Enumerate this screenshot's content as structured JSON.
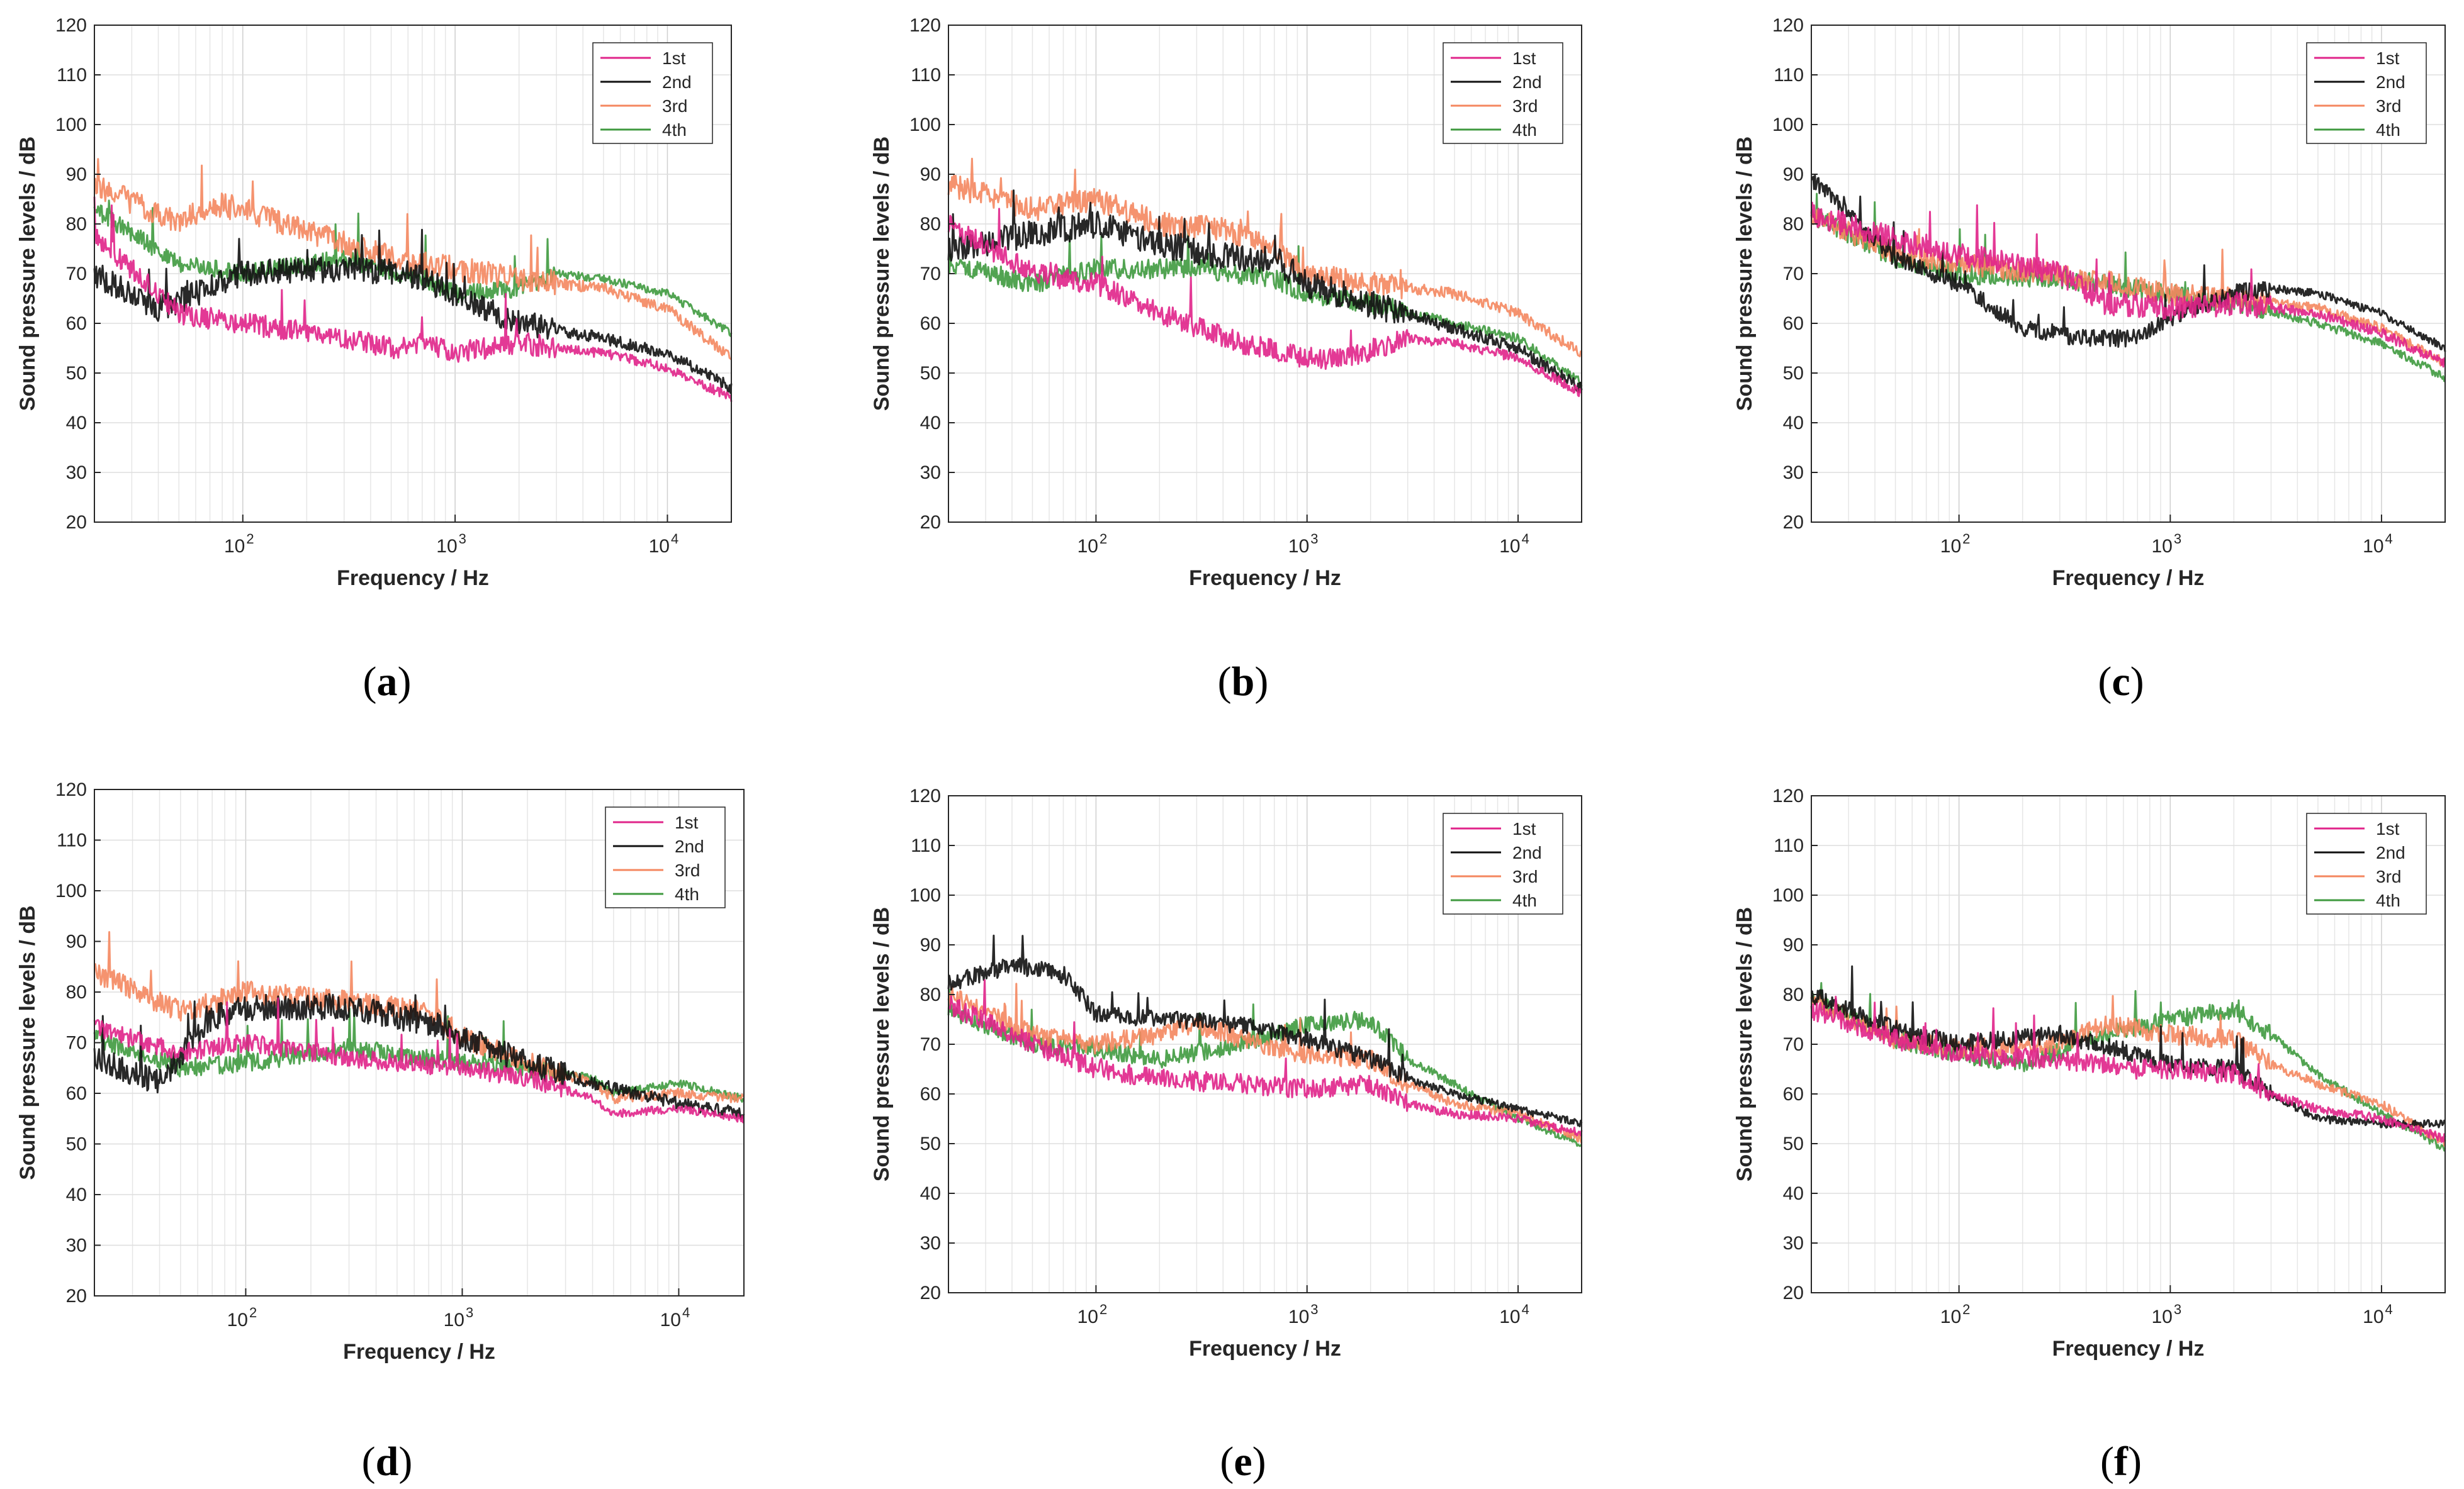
{
  "figure": {
    "captions": [
      "(a)",
      "(b)",
      "(c)",
      "(d)",
      "(e)",
      "(f)"
    ]
  },
  "series_colors": {
    "1st": "#e0248a",
    "2nd": "#111111",
    "3rd": "#f4875f",
    "4th": "#3f9a3f"
  },
  "chart_data": [
    {
      "panel": "(a)",
      "type": "line",
      "xscale": "log",
      "xlabel": "Frequency / Hz",
      "ylabel": "Sound pressure levels / dB",
      "xlim": [
        20,
        20000
      ],
      "ylim": [
        20,
        120
      ],
      "yticks": [
        20,
        30,
        40,
        50,
        60,
        70,
        80,
        90,
        100,
        110,
        120
      ],
      "xticks": [
        {
          "value": 100,
          "label": "10",
          "exp": "2"
        },
        {
          "value": 1000,
          "label": "10",
          "exp": "3"
        },
        {
          "value": 10000,
          "label": "10",
          "exp": "4"
        }
      ],
      "legend": [
        "1st",
        "2nd",
        "3rd",
        "4th"
      ],
      "legend_position": "top-right",
      "series": [
        {
          "name": "1st",
          "x": [
            20,
            50,
            100,
            300,
            500,
            700,
            1000,
            2000,
            5000,
            10000,
            20000
          ],
          "values": [
            78,
            62,
            60,
            57,
            55,
            56,
            54,
            56,
            54,
            51,
            45
          ],
          "noise": 2.2
        },
        {
          "name": "2nd",
          "x": [
            20,
            40,
            70,
            100,
            300,
            600,
            1000,
            2000,
            5000,
            10000,
            20000
          ],
          "values": [
            70,
            63,
            67,
            70,
            71,
            70,
            66,
            60,
            57,
            54,
            47
          ],
          "noise": 2.6
        },
        {
          "name": "3rd",
          "x": [
            20,
            50,
            70,
            100,
            300,
            700,
            1000,
            2000,
            5000,
            10000,
            20000
          ],
          "values": [
            88,
            80,
            84,
            83,
            76,
            72,
            71,
            69,
            67,
            63,
            53
          ],
          "noise": 2.5
        },
        {
          "name": "4th",
          "x": [
            20,
            50,
            100,
            300,
            700,
            1000,
            2000,
            3000,
            5000,
            10000,
            20000
          ],
          "values": [
            83,
            72,
            70,
            73,
            69,
            66,
            67,
            70,
            69,
            66,
            58
          ],
          "noise": 1.8
        }
      ]
    },
    {
      "panel": "(b)",
      "type": "line",
      "xscale": "log",
      "xlabel": "Frequency / Hz",
      "ylabel": "Sound pressure levels / dB",
      "xlim": [
        20,
        20000
      ],
      "ylim": [
        20,
        120
      ],
      "yticks": [
        20,
        30,
        40,
        50,
        60,
        70,
        80,
        90,
        100,
        110,
        120
      ],
      "xticks": [
        {
          "value": 100,
          "label": "10",
          "exp": "2"
        },
        {
          "value": 1000,
          "label": "10",
          "exp": "3"
        },
        {
          "value": 10000,
          "label": "10",
          "exp": "4"
        }
      ],
      "legend": [
        "1st",
        "2nd",
        "3rd",
        "4th"
      ],
      "legend_position": "top-right",
      "series": [
        {
          "name": "1st",
          "x": [
            20,
            50,
            100,
            200,
            500,
            1000,
            1500,
            3000,
            5000,
            10000,
            20000
          ],
          "values": [
            80,
            70,
            68,
            62,
            56,
            53,
            53,
            57,
            56,
            53,
            46
          ],
          "noise": 2.2
        },
        {
          "name": "2nd",
          "x": [
            20,
            50,
            100,
            200,
            500,
            700,
            1000,
            2000,
            5000,
            10000,
            20000
          ],
          "values": [
            75,
            78,
            80,
            76,
            73,
            73,
            68,
            64,
            59,
            55,
            47
          ],
          "noise": 2.8
        },
        {
          "name": "3rd",
          "x": [
            20,
            50,
            100,
            200,
            400,
            700,
            1000,
            2000,
            5000,
            10000,
            20000
          ],
          "values": [
            88,
            83,
            85,
            80,
            79,
            75,
            70,
            68,
            66,
            62,
            54
          ],
          "noise": 2.4
        },
        {
          "name": "4th",
          "x": [
            20,
            50,
            100,
            300,
            700,
            1000,
            2000,
            5000,
            10000,
            20000
          ],
          "values": [
            72,
            68,
            71,
            71,
            69,
            66,
            64,
            60,
            57,
            48
          ],
          "noise": 2.0
        }
      ]
    },
    {
      "panel": "(c)",
      "type": "line",
      "xscale": "log",
      "xlabel": "Frequency / Hz",
      "ylabel": "Sound pressure levels / dB",
      "xlim": [
        20,
        20000
      ],
      "ylim": [
        20,
        120
      ],
      "yticks": [
        20,
        30,
        40,
        50,
        60,
        70,
        80,
        90,
        100,
        110,
        120
      ],
      "xticks": [
        {
          "value": 100,
          "label": "10",
          "exp": "2"
        },
        {
          "value": 1000,
          "label": "10",
          "exp": "3"
        },
        {
          "value": 10000,
          "label": "10",
          "exp": "4"
        }
      ],
      "legend": [
        "1st",
        "2nd",
        "3rd",
        "4th"
      ],
      "legend_position": "top-right",
      "series": [
        {
          "name": "1st",
          "x": [
            20,
            50,
            100,
            300,
            500,
            1000,
            2000,
            5000,
            10000,
            20000
          ],
          "values": [
            82,
            77,
            74,
            70,
            64,
            63,
            64,
            62,
            58,
            52
          ],
          "noise": 2.4
        },
        {
          "name": "2nd",
          "x": [
            20,
            50,
            100,
            200,
            400,
            700,
            1000,
            2000,
            3000,
            5000,
            10000,
            20000
          ],
          "values": [
            89,
            73,
            68,
            59,
            57,
            57,
            61,
            66,
            67,
            66,
            62,
            55
          ],
          "noise": 1.8
        },
        {
          "name": "3rd",
          "x": [
            20,
            50,
            100,
            300,
            1000,
            2000,
            5000,
            10000,
            20000
          ],
          "values": [
            82,
            74,
            72,
            70,
            66,
            65,
            63,
            59,
            52
          ],
          "noise": 2.3
        },
        {
          "name": "4th",
          "x": [
            20,
            50,
            100,
            300,
            1000,
            2000,
            5000,
            10000,
            20000
          ],
          "values": [
            82,
            73,
            70,
            69,
            66,
            64,
            60,
            56,
            49
          ],
          "noise": 2.0
        }
      ]
    },
    {
      "panel": "(d)",
      "type": "line",
      "xscale": "log",
      "xlabel": "Frequency / Hz",
      "ylabel": "Sound pressure levels / dB",
      "xlim": [
        20,
        20000
      ],
      "ylim": [
        20,
        120
      ],
      "yticks": [
        20,
        30,
        40,
        50,
        60,
        70,
        80,
        90,
        100,
        110,
        120
      ],
      "xticks": [
        {
          "value": 100,
          "label": "10",
          "exp": "2"
        },
        {
          "value": 1000,
          "label": "10",
          "exp": "3"
        },
        {
          "value": 10000,
          "label": "10",
          "exp": "4"
        }
      ],
      "legend": [
        "1st",
        "2nd",
        "3rd",
        "4th"
      ],
      "legend_position": "top-right",
      "series": [
        {
          "name": "1st",
          "x": [
            20,
            50,
            100,
            300,
            1000,
            2000,
            4000,
            5000,
            10000,
            20000
          ],
          "values": [
            73,
            68,
            70,
            67,
            65,
            63,
            59,
            56,
            57,
            55
          ],
          "noise": 1.8
        },
        {
          "name": "2nd",
          "x": [
            20,
            40,
            70,
            100,
            300,
            700,
            1000,
            2000,
            4000,
            10000,
            20000
          ],
          "values": [
            67,
            62,
            75,
            77,
            77,
            74,
            71,
            66,
            62,
            58,
            56
          ],
          "noise": 2.6
        },
        {
          "name": "3rd",
          "x": [
            20,
            50,
            100,
            300,
            700,
            1000,
            2000,
            4000,
            5000,
            10000,
            20000
          ],
          "values": [
            84,
            76,
            80,
            78,
            76,
            71,
            66,
            62,
            59,
            60,
            59
          ],
          "noise": 2.2
        },
        {
          "name": "4th",
          "x": [
            20,
            50,
            100,
            300,
            1000,
            2000,
            4000,
            5000,
            10000,
            20000
          ],
          "values": [
            71,
            65,
            66,
            69,
            66,
            65,
            63,
            60,
            62,
            59
          ],
          "noise": 1.8
        }
      ]
    },
    {
      "panel": "(e)",
      "type": "line",
      "xscale": "log",
      "xlabel": "Frequency / Hz",
      "ylabel": "Sound pressure levels / dB",
      "xlim": [
        20,
        20000
      ],
      "ylim": [
        20,
        120
      ],
      "yticks": [
        20,
        30,
        40,
        50,
        60,
        70,
        80,
        90,
        100,
        110,
        120
      ],
      "xticks": [
        {
          "value": 100,
          "label": "10",
          "exp": "2"
        },
        {
          "value": 1000,
          "label": "10",
          "exp": "3"
        },
        {
          "value": 10000,
          "label": "10",
          "exp": "4"
        }
      ],
      "legend": [
        "1st",
        "2nd",
        "3rd",
        "4th"
      ],
      "legend_position": "top-right",
      "series": [
        {
          "name": "1st",
          "x": [
            20,
            50,
            100,
            200,
            500,
            1000,
            2000,
            3000,
            5000,
            10000,
            20000
          ],
          "values": [
            78,
            70,
            65,
            63,
            62,
            61,
            62,
            58,
            56,
            55,
            52
          ],
          "noise": 2.0
        },
        {
          "name": "2nd",
          "x": [
            20,
            40,
            70,
            100,
            200,
            500,
            1000,
            2000,
            3000,
            5000,
            10000,
            20000
          ],
          "values": [
            82,
            86,
            84,
            76,
            75,
            74,
            71,
            67,
            63,
            60,
            57,
            54
          ],
          "noise": 1.8
        },
        {
          "name": "3rd",
          "x": [
            20,
            50,
            100,
            200,
            300,
            500,
            1000,
            2000,
            3000,
            5000,
            10000,
            20000
          ],
          "values": [
            80,
            72,
            70,
            72,
            74,
            71,
            68,
            67,
            62,
            58,
            56,
            51
          ],
          "noise": 2.0
        },
        {
          "name": "4th",
          "x": [
            20,
            50,
            100,
            200,
            500,
            1000,
            2000,
            3000,
            5000,
            10000,
            20000
          ],
          "values": [
            77,
            70,
            69,
            67,
            70,
            74,
            75,
            67,
            62,
            55,
            50
          ],
          "noise": 1.8
        }
      ]
    },
    {
      "panel": "(f)",
      "type": "line",
      "xscale": "log",
      "xlabel": "Frequency / Hz",
      "ylabel": "Sound pressure levels / dB",
      "xlim": [
        20,
        20000
      ],
      "ylim": [
        20,
        120
      ],
      "yticks": [
        20,
        30,
        40,
        50,
        60,
        70,
        80,
        90,
        100,
        110,
        120
      ],
      "xticks": [
        {
          "value": 100,
          "label": "10",
          "exp": "2"
        },
        {
          "value": 1000,
          "label": "10",
          "exp": "3"
        },
        {
          "value": 10000,
          "label": "10",
          "exp": "4"
        }
      ],
      "legend": [
        "1st",
        "2nd",
        "3rd",
        "4th"
      ],
      "legend_position": "top-right",
      "series": [
        {
          "name": "1st",
          "x": [
            20,
            50,
            100,
            300,
            700,
            1000,
            2000,
            3000,
            5000,
            10000,
            20000
          ],
          "values": [
            77,
            71,
            68,
            67,
            65,
            65,
            64,
            60,
            57,
            55,
            51
          ],
          "noise": 2.0
        },
        {
          "name": "2nd",
          "x": [
            20,
            50,
            100,
            300,
            700,
            1000,
            2000,
            3000,
            5000,
            10000,
            20000
          ],
          "values": [
            80,
            73,
            70,
            72,
            68,
            66,
            65,
            60,
            55,
            54,
            54
          ],
          "noise": 1.8
        },
        {
          "name": "3rd",
          "x": [
            20,
            50,
            100,
            300,
            500,
            1000,
            2000,
            3000,
            5000,
            10000,
            20000
          ],
          "values": [
            79,
            71,
            69,
            70,
            74,
            72,
            71,
            66,
            62,
            58,
            50
          ],
          "noise": 2.0
        },
        {
          "name": "4th",
          "x": [
            20,
            50,
            100,
            200,
            500,
            1000,
            2000,
            3000,
            5000,
            10000,
            20000
          ],
          "values": [
            79,
            71,
            68,
            66,
            72,
            75,
            77,
            72,
            64,
            56,
            49
          ],
          "noise": 1.8
        }
      ]
    }
  ]
}
